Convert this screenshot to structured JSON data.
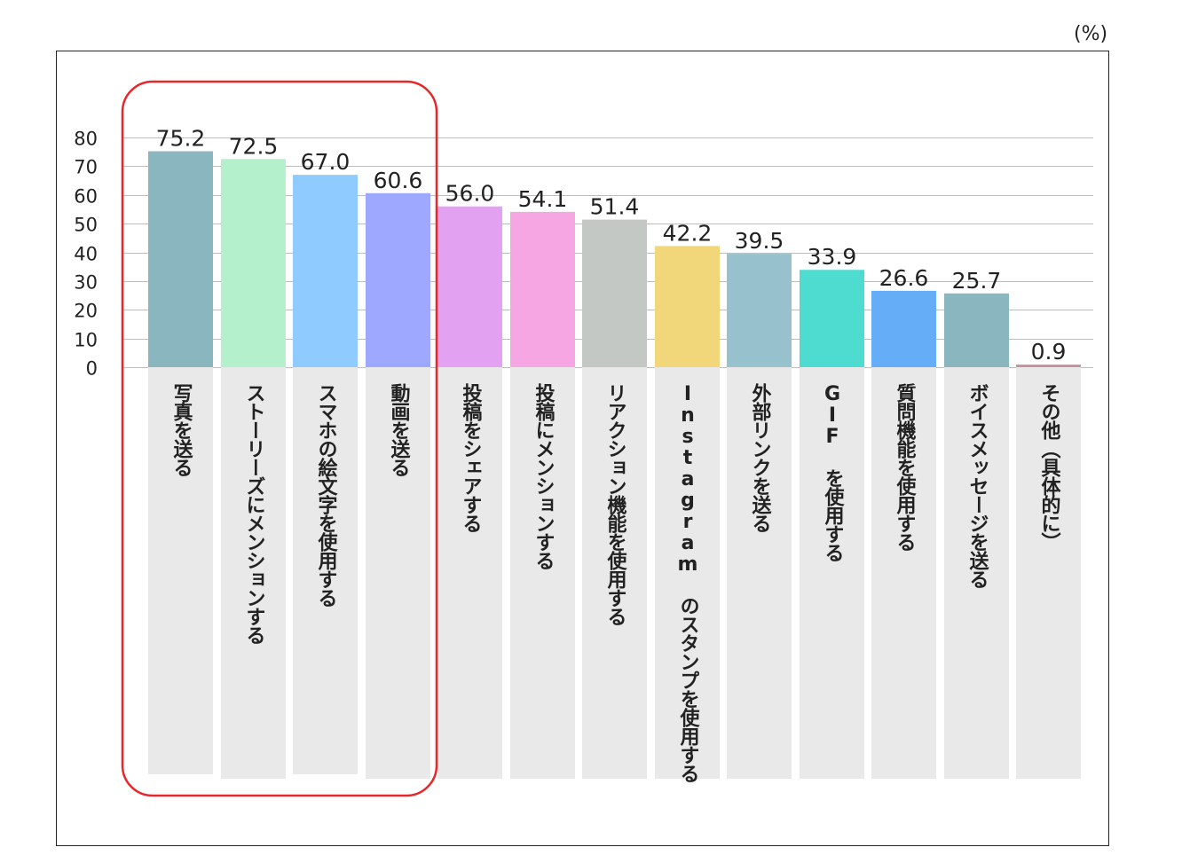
{
  "unit_label": "(%)",
  "chart_data": {
    "type": "bar",
    "title": "",
    "xlabel": "",
    "ylabel": "",
    "ylim": [
      0,
      80
    ],
    "yticks": [
      0,
      10,
      20,
      30,
      40,
      50,
      60,
      70,
      80
    ],
    "grid": true,
    "categories": [
      "写真を送る",
      "ストーリーズにメンションする",
      "スマホの絵文字を使用する",
      "動画を送る",
      "投稿をシェアする",
      "投稿にメンションする",
      "リアクション機能を使用する",
      "Instagram のスタンプを使用する",
      "外部リンクを送る",
      "GIF を使用する",
      "質問機能を使用する",
      "ボイスメッセージを送る",
      "その他（具体的に）"
    ],
    "values": [
      75.2,
      72.5,
      67.0,
      60.6,
      56.0,
      54.1,
      51.4,
      42.2,
      39.5,
      33.9,
      26.6,
      25.7,
      0.9
    ],
    "value_labels": [
      "75.2",
      "72.5",
      "67.0",
      "60.6",
      "56.0",
      "54.1",
      "51.4",
      "42.2",
      "39.5",
      "33.9",
      "26.6",
      "25.7",
      "0.9"
    ],
    "colors": [
      "#8ab6bf",
      "#b5f0cc",
      "#8fcbff",
      "#9ea8ff",
      "#e2a1f1",
      "#f6a7e3",
      "#c4c8c5",
      "#f2d67a",
      "#97c1cc",
      "#4ddccf",
      "#66adf7",
      "#8ab6bf",
      "#c8909e"
    ],
    "highlight_color": "#e8272b"
  }
}
